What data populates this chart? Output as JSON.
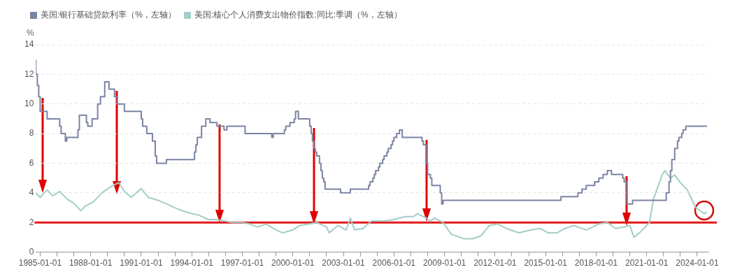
{
  "chart_data": {
    "type": "line",
    "ylabel": "%",
    "legend": "top left",
    "grid": "y",
    "xlim": [
      "1984-10",
      "2024-09"
    ],
    "ylim": [
      0,
      14
    ],
    "yticks": [
      0,
      2,
      4,
      6,
      8,
      10,
      12,
      14
    ],
    "xticks": [
      "1985-01-01",
      {
        "value": "1986-01-01",
        "label": null
      },
      {
        "value": "1987-01-01",
        "label": null
      },
      "1988-01-01",
      {
        "value": "1989-01-01",
        "label": null
      },
      {
        "value": "1990-01-01",
        "label": null
      },
      "1991-01-01",
      {
        "value": "1992-01-01",
        "label": null
      },
      {
        "value": "1993-01-01",
        "label": null
      },
      "1994-01-01",
      {
        "value": "1995-01-01",
        "label": null
      },
      {
        "value": "1996-01-01",
        "label": null
      },
      "1997-01-01",
      {
        "value": "1998-01-01",
        "label": null
      },
      {
        "value": "1999-01-01",
        "label": null
      },
      "2000-01-01",
      {
        "value": "2001-01-01",
        "label": null
      },
      {
        "value": "2002-01-01",
        "label": null
      },
      "2003-01-01",
      {
        "value": "2004-01-01",
        "label": null
      },
      {
        "value": "2005-01-01",
        "label": null
      },
      "2006-01-01",
      {
        "value": "2007-01-01",
        "label": null
      },
      {
        "value": "2008-01-01",
        "label": null
      },
      "2009-01-01",
      {
        "value": "2010-01-01",
        "label": null
      },
      {
        "value": "2011-01-01",
        "label": null
      },
      "2012-01-01",
      {
        "value": "2013-01-01",
        "label": null
      },
      {
        "value": "2014-01-01",
        "label": null
      },
      "2015-01-01",
      {
        "value": "2016-01-01",
        "label": null
      },
      {
        "value": "2017-01-01",
        "label": null
      },
      "2018-01-01",
      {
        "value": "2019-01-01",
        "label": null
      },
      {
        "value": "2020-01-01",
        "label": null
      },
      "2021-01-01",
      {
        "value": "2022-01-01",
        "label": null
      },
      {
        "value": "2023-01-01",
        "label": null
      },
      "2024-01-01"
    ],
    "ref_lines": [
      {
        "axis": "y",
        "value": 2,
        "color": "#e31a1a"
      }
    ],
    "series": [
      {
        "name": "美国:银行基础贷款利率（%，左轴）",
        "type": "step",
        "color": "#7b83a4",
        "x": [
          "1984-10",
          "1984-11",
          "1984-12",
          "1985-01",
          "1985-06",
          "1986-03",
          "1986-04",
          "1986-07",
          "1986-08",
          "1987-04",
          "1987-05",
          "1987-10",
          "1987-11",
          "1988-02",
          "1988-06",
          "1988-08",
          "1988-11",
          "1989-02",
          "1989-06",
          "1989-08",
          "1990-01",
          "1991-01",
          "1991-02",
          "1991-05",
          "1991-09",
          "1991-11",
          "1991-12",
          "1992-07",
          "1994-03",
          "1994-04",
          "1994-05",
          "1994-08",
          "1994-11",
          "1995-02",
          "1995-07",
          "1995-12",
          "1996-02",
          "1997-03",
          "1998-10",
          "1998-11",
          "1999-07",
          "1999-08",
          "1999-11",
          "2000-02",
          "2000-03",
          "2000-05",
          "2001-01",
          "2001-02",
          "2001-03",
          "2001-04",
          "2001-05",
          "2001-06",
          "2001-08",
          "2001-09",
          "2001-10",
          "2001-11",
          "2001-12",
          "2002-11",
          "2003-06",
          "2004-07",
          "2004-08",
          "2004-10",
          "2004-11",
          "2004-12",
          "2005-02",
          "2005-03",
          "2005-05",
          "2005-06",
          "2005-08",
          "2005-09",
          "2005-11",
          "2005-12",
          "2006-01",
          "2006-03",
          "2006-05",
          "2006-07",
          "2007-09",
          "2007-10",
          "2007-12",
          "2008-01",
          "2008-03",
          "2008-04",
          "2008-10",
          "2008-11",
          "2008-12",
          "2015-12",
          "2016-12",
          "2017-03",
          "2017-06",
          "2017-12",
          "2018-03",
          "2018-06",
          "2018-09",
          "2018-12",
          "2019-08",
          "2019-09",
          "2019-11",
          "2020-03",
          "2022-03",
          "2022-05",
          "2022-06",
          "2022-07",
          "2022-09",
          "2022-11",
          "2022-12",
          "2023-02",
          "2023-03",
          "2023-05",
          "2023-08",
          "2024-08"
        ],
        "values": [
          13.0,
          12.0,
          11.25,
          10.5,
          9.5,
          9.0,
          8.5,
          8.0,
          7.5,
          7.75,
          8.25,
          9.25,
          8.75,
          8.5,
          9.0,
          10.0,
          10.5,
          11.5,
          11.0,
          10.5,
          10.0,
          9.5,
          9.0,
          8.5,
          8.0,
          7.5,
          6.5,
          6.0,
          6.25,
          6.75,
          7.25,
          7.75,
          8.5,
          9.0,
          8.75,
          8.5,
          8.25,
          8.5,
          8.0,
          7.75,
          8.0,
          8.25,
          8.5,
          8.75,
          9.0,
          9.5,
          9.0,
          8.5,
          8.0,
          7.5,
          7.0,
          6.75,
          6.5,
          6.0,
          5.5,
          5.0,
          4.75,
          4.25,
          4.0,
          4.25,
          4.5,
          4.75,
          5.0,
          5.25,
          5.5,
          5.75,
          6.0,
          6.25,
          6.5,
          6.75,
          7.0,
          7.25,
          7.5,
          7.75,
          8.0,
          8.25,
          7.75,
          7.5,
          7.25,
          6.0,
          5.25,
          5.0,
          4.5,
          4.0,
          3.25,
          3.5,
          3.75,
          4.0,
          4.25,
          4.5,
          4.75,
          5.0,
          5.25,
          5.5,
          5.25,
          5.0,
          4.75,
          3.25,
          3.5,
          4.0,
          4.75,
          5.5,
          6.25,
          7.0,
          7.5,
          7.75,
          8.0,
          8.25,
          8.5,
          8.5
        ]
      },
      {
        "name": "美国:核心个人消费支出物价指数:同比:季调（%，左轴）",
        "type": "line",
        "color": "#a3cdc8",
        "x": [
          "1984-10",
          "1985-01",
          "1985-06",
          "1985-10",
          "1986-03",
          "1986-08",
          "1987-01",
          "1987-03",
          "1987-06",
          "1987-09",
          "1988-03",
          "1988-09",
          "1989-03",
          "1989-09",
          "1990-01",
          "1990-06",
          "1991-01",
          "1991-06",
          "1992-01",
          "1992-06",
          "1993-01",
          "1993-06",
          "1994-01",
          "1994-06",
          "1995-01",
          "1995-06",
          "1996-01",
          "1996-06",
          "1997-01",
          "1997-06",
          "1997-12",
          "1998-06",
          "1999-01",
          "1999-06",
          "2000-01",
          "2000-06",
          "2001-01",
          "2001-06",
          "2002-01",
          "2002-03",
          "2002-09",
          "2003-03",
          "2003-06",
          "2003-09",
          "2004-03",
          "2004-09",
          "2005-06",
          "2006-01",
          "2006-09",
          "2007-03",
          "2007-06",
          "2007-12",
          "2008-03",
          "2008-06",
          "2008-12",
          "2009-06",
          "2010-03",
          "2010-09",
          "2011-03",
          "2011-09",
          "2012-03",
          "2012-09",
          "2013-06",
          "2014-03",
          "2014-09",
          "2015-03",
          "2015-09",
          "2016-03",
          "2016-09",
          "2017-06",
          "2018-03",
          "2018-09",
          "2019-03",
          "2019-09",
          "2020-01",
          "2020-04",
          "2020-09",
          "2021-03",
          "2021-06",
          "2021-12",
          "2022-02",
          "2022-06",
          "2022-09",
          "2023-01",
          "2023-06",
          "2023-12",
          "2024-06",
          "2024-08"
        ],
        "values": [
          4.0,
          3.7,
          4.2,
          3.8,
          4.1,
          3.6,
          3.3,
          3.1,
          2.8,
          3.1,
          3.4,
          4.0,
          4.4,
          4.7,
          4.1,
          3.7,
          4.3,
          3.7,
          3.5,
          3.3,
          3.0,
          2.8,
          2.6,
          2.5,
          2.2,
          2.2,
          2.1,
          2.0,
          2.0,
          1.9,
          1.7,
          1.9,
          1.5,
          1.3,
          1.5,
          1.8,
          1.9,
          2.0,
          1.7,
          1.3,
          1.8,
          1.5,
          2.3,
          1.5,
          1.6,
          2.1,
          2.1,
          2.2,
          2.4,
          2.4,
          2.6,
          2.3,
          2.1,
          2.3,
          2.0,
          1.2,
          0.9,
          0.9,
          1.1,
          1.8,
          1.9,
          1.6,
          1.3,
          1.5,
          1.6,
          1.3,
          1.3,
          1.6,
          1.8,
          1.5,
          1.9,
          2.0,
          1.6,
          1.7,
          1.8,
          1.0,
          1.4,
          2.0,
          3.6,
          5.2,
          5.5,
          5.0,
          5.2,
          4.7,
          4.2,
          3.0,
          2.6,
          2.7
        ]
      }
    ]
  }
}
